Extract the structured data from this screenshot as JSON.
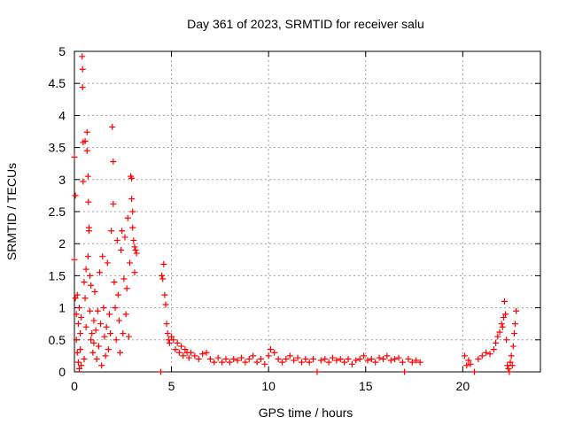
{
  "chart_data": {
    "type": "scatter",
    "title": "Day 361 of 2023, SRMTID for receiver salu",
    "xlabel": "GPS time / hours",
    "ylabel": "SRMTID / TECUs",
    "xlim": [
      0,
      24
    ],
    "ylim": [
      0,
      5
    ],
    "xticks": [
      0,
      5,
      10,
      15,
      20
    ],
    "yticks": [
      0,
      0.5,
      1,
      1.5,
      2,
      2.5,
      3,
      3.5,
      4,
      4.5,
      5
    ],
    "xtick_labels": [
      "0",
      "5",
      "10",
      "15",
      "20"
    ],
    "ytick_labels": [
      "0",
      "0.5",
      "1",
      "1.5",
      "2",
      "2.5",
      "3",
      "3.5",
      "4",
      "4.5",
      "5"
    ],
    "grid": true,
    "marker": "+",
    "series": [
      {
        "name": "salu",
        "color": "#ff0000",
        "points": [
          [
            0.0,
            3.35
          ],
          [
            0.0,
            1.75
          ],
          [
            0.05,
            2.75
          ],
          [
            0.05,
            1.15
          ],
          [
            0.1,
            0.9
          ],
          [
            0.1,
            0.5
          ],
          [
            0.15,
            1.2
          ],
          [
            0.15,
            0.3
          ],
          [
            0.2,
            0.75
          ],
          [
            0.2,
            0.15
          ],
          [
            0.25,
            1.0
          ],
          [
            0.25,
            0.05
          ],
          [
            0.3,
            0.6
          ],
          [
            0.3,
            0.35
          ],
          [
            0.35,
            0.85
          ],
          [
            0.35,
            0.1
          ],
          [
            0.4,
            4.92
          ],
          [
            0.42,
            4.72
          ],
          [
            0.42,
            4.44
          ],
          [
            0.45,
            3.58
          ],
          [
            0.45,
            2.97
          ],
          [
            0.5,
            1.4
          ],
          [
            0.5,
            0.2
          ],
          [
            0.55,
            3.6
          ],
          [
            0.55,
            1.15
          ],
          [
            0.6,
            1.6
          ],
          [
            0.6,
            0.7
          ],
          [
            0.65,
            3.74
          ],
          [
            0.65,
            3.45
          ],
          [
            0.7,
            3.05
          ],
          [
            0.7,
            1.8
          ],
          [
            0.72,
            2.65
          ],
          [
            0.75,
            2.25
          ],
          [
            0.75,
            2.2
          ],
          [
            0.8,
            1.5
          ],
          [
            0.8,
            0.95
          ],
          [
            0.85,
            0.5
          ],
          [
            0.85,
            1.35
          ],
          [
            0.9,
            0.6
          ],
          [
            0.95,
            0.3
          ],
          [
            1.0,
            0.8
          ],
          [
            1.0,
            0.45
          ],
          [
            1.05,
            1.25
          ],
          [
            1.1,
            0.65
          ],
          [
            1.15,
            0.2
          ],
          [
            1.2,
            0.95
          ],
          [
            1.25,
            0.4
          ],
          [
            1.3,
            1.55
          ],
          [
            1.35,
            0.75
          ],
          [
            1.4,
            0.1
          ],
          [
            1.45,
            1.8
          ],
          [
            1.5,
            1.0
          ],
          [
            1.55,
            0.55
          ],
          [
            1.6,
            0.25
          ],
          [
            1.65,
            0.7
          ],
          [
            1.7,
            1.7
          ],
          [
            1.75,
            0.35
          ],
          [
            1.8,
            0.9
          ],
          [
            1.85,
            0.6
          ],
          [
            1.9,
            2.2
          ],
          [
            1.95,
            3.82
          ],
          [
            2.0,
            3.28
          ],
          [
            2.0,
            2.62
          ],
          [
            2.05,
            1.4
          ],
          [
            2.1,
            1.0
          ],
          [
            2.15,
            0.5
          ],
          [
            2.2,
            2.05
          ],
          [
            2.25,
            1.2
          ],
          [
            2.3,
            0.8
          ],
          [
            2.35,
            0.3
          ],
          [
            2.4,
            1.9
          ],
          [
            2.45,
            2.2
          ],
          [
            2.5,
            0.6
          ],
          [
            2.55,
            1.45
          ],
          [
            2.6,
            2.1
          ],
          [
            2.65,
            0.9
          ],
          [
            2.7,
            1.3
          ],
          [
            2.75,
            2.4
          ],
          [
            2.8,
            0.55
          ],
          [
            2.85,
            1.7
          ],
          [
            2.9,
            3.05
          ],
          [
            2.95,
            3.02
          ],
          [
            2.95,
            2.7
          ],
          [
            3.0,
            2.5
          ],
          [
            3.0,
            2.25
          ],
          [
            3.05,
            2.05
          ],
          [
            3.1,
            1.95
          ],
          [
            3.1,
            1.55
          ],
          [
            3.15,
            1.9
          ],
          [
            3.2,
            1.85
          ],
          [
            4.45,
            0.0
          ],
          [
            4.5,
            1.5
          ],
          [
            4.55,
            1.45
          ],
          [
            4.6,
            1.68
          ],
          [
            4.65,
            1.2
          ],
          [
            4.7,
            1.05
          ],
          [
            4.75,
            0.75
          ],
          [
            4.8,
            0.6
          ],
          [
            4.85,
            0.5
          ],
          [
            4.9,
            0.45
          ],
          [
            5.0,
            0.55
          ],
          [
            5.1,
            0.5
          ],
          [
            5.2,
            0.35
          ],
          [
            5.3,
            0.45
          ],
          [
            5.4,
            0.3
          ],
          [
            5.5,
            0.4
          ],
          [
            5.6,
            0.25
          ],
          [
            5.7,
            0.35
          ],
          [
            5.8,
            0.3
          ],
          [
            5.9,
            0.22
          ],
          [
            6.0,
            0.3
          ],
          [
            6.2,
            0.25
          ],
          [
            6.4,
            0.2
          ],
          [
            6.6,
            0.28
          ],
          [
            6.8,
            0.3
          ],
          [
            7.0,
            0.2
          ],
          [
            7.2,
            0.15
          ],
          [
            7.4,
            0.22
          ],
          [
            7.6,
            0.15
          ],
          [
            7.8,
            0.2
          ],
          [
            8.0,
            0.15
          ],
          [
            8.2,
            0.2
          ],
          [
            8.4,
            0.18
          ],
          [
            8.6,
            0.22
          ],
          [
            8.8,
            0.15
          ],
          [
            9.0,
            0.2
          ],
          [
            9.2,
            0.25
          ],
          [
            9.4,
            0.15
          ],
          [
            9.6,
            0.2
          ],
          [
            9.8,
            0.12
          ],
          [
            10.0,
            0.25
          ],
          [
            10.1,
            0.35
          ],
          [
            10.3,
            0.3
          ],
          [
            10.5,
            0.2
          ],
          [
            10.7,
            0.15
          ],
          [
            10.9,
            0.2
          ],
          [
            11.1,
            0.25
          ],
          [
            11.3,
            0.18
          ],
          [
            11.5,
            0.22
          ],
          [
            11.7,
            0.15
          ],
          [
            11.9,
            0.2
          ],
          [
            12.1,
            0.15
          ],
          [
            12.3,
            0.2
          ],
          [
            12.5,
            0.0
          ],
          [
            12.7,
            0.18
          ],
          [
            12.9,
            0.2
          ],
          [
            13.1,
            0.15
          ],
          [
            13.3,
            0.22
          ],
          [
            13.5,
            0.18
          ],
          [
            13.7,
            0.2
          ],
          [
            13.9,
            0.15
          ],
          [
            14.1,
            0.2
          ],
          [
            14.3,
            0.12
          ],
          [
            14.5,
            0.18
          ],
          [
            14.7,
            0.2
          ],
          [
            14.9,
            0.25
          ],
          [
            15.1,
            0.18
          ],
          [
            15.3,
            0.2
          ],
          [
            15.5,
            0.15
          ],
          [
            15.7,
            0.22
          ],
          [
            15.9,
            0.2
          ],
          [
            16.1,
            0.25
          ],
          [
            16.3,
            0.18
          ],
          [
            16.5,
            0.2
          ],
          [
            16.7,
            0.22
          ],
          [
            16.9,
            0.15
          ],
          [
            17.0,
            0.0
          ],
          [
            17.2,
            0.2
          ],
          [
            17.4,
            0.15
          ],
          [
            17.6,
            0.18
          ],
          [
            17.8,
            0.15
          ],
          [
            20.1,
            0.25
          ],
          [
            20.2,
            0.1
          ],
          [
            20.3,
            0.18
          ],
          [
            20.4,
            0.12
          ],
          [
            20.6,
            0.0
          ],
          [
            20.8,
            0.2
          ],
          [
            21.0,
            0.25
          ],
          [
            21.2,
            0.3
          ],
          [
            21.4,
            0.28
          ],
          [
            21.6,
            0.35
          ],
          [
            21.7,
            0.45
          ],
          [
            21.8,
            0.55
          ],
          [
            21.9,
            0.62
          ],
          [
            22.0,
            0.75
          ],
          [
            22.05,
            0.7
          ],
          [
            22.1,
            0.85
          ],
          [
            22.15,
            1.1
          ],
          [
            22.2,
            0.9
          ],
          [
            22.25,
            0.5
          ],
          [
            22.3,
            0.1
          ],
          [
            22.35,
            0.05
          ],
          [
            22.4,
            0.0
          ],
          [
            22.45,
            0.15
          ],
          [
            22.5,
            0.25
          ],
          [
            22.55,
            0.1
          ],
          [
            22.6,
            0.4
          ],
          [
            22.65,
            0.6
          ],
          [
            22.7,
            0.75
          ],
          [
            22.75,
            0.95
          ]
        ]
      }
    ]
  }
}
